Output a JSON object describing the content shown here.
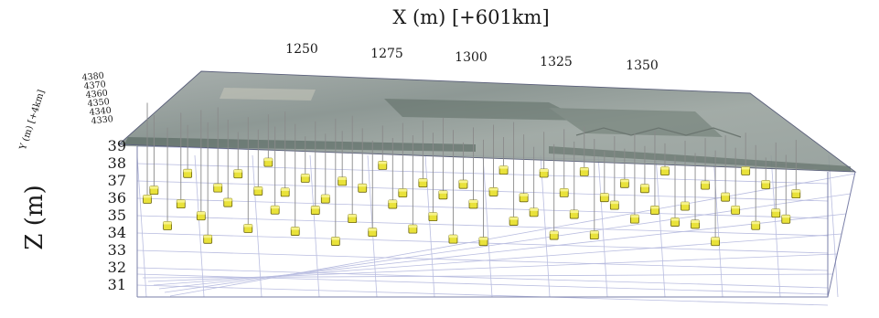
{
  "chart_data": {
    "type": "scatter",
    "title": "",
    "xlabel": "X (m) [+601km]",
    "ylabel": "Y (m) [+4km]",
    "zlabel": "Z (m)",
    "x_ticks": [
      "1250",
      "1275",
      "1300",
      "1325",
      "1350"
    ],
    "y_ticks": [
      "4380",
      "4370",
      "4360",
      "4350",
      "4340",
      "4330"
    ],
    "z_ticks": [
      "39",
      "38",
      "37",
      "36",
      "35",
      "34",
      "33",
      "32",
      "31"
    ],
    "zlim": [
      31,
      39
    ],
    "grid": true,
    "surface": "aerial photograph draped at ground level",
    "colors": {
      "marker": "#e9e23a",
      "marker_edge": "#6b6512",
      "grid": "#b9bde0"
    },
    "series": [
      {
        "points": [
          [
            1208,
            35.8
          ],
          [
            1210,
            37.0
          ],
          [
            1214,
            34.9
          ],
          [
            1218,
            36.1
          ],
          [
            1220,
            37.8
          ],
          [
            1224,
            35.3
          ],
          [
            1226,
            33.9
          ],
          [
            1229,
            36.8
          ],
          [
            1232,
            35.9
          ],
          [
            1235,
            37.5
          ],
          [
            1238,
            34.3
          ],
          [
            1241,
            36.4
          ],
          [
            1244,
            38.0
          ],
          [
            1246,
            35.2
          ],
          [
            1249,
            36.9
          ],
          [
            1252,
            34.6
          ],
          [
            1255,
            37.6
          ],
          [
            1258,
            35.7
          ],
          [
            1261,
            36.3
          ],
          [
            1264,
            33.8
          ],
          [
            1266,
            37.2
          ],
          [
            1269,
            35.0
          ],
          [
            1272,
            36.7
          ],
          [
            1275,
            34.1
          ],
          [
            1278,
            37.9
          ],
          [
            1281,
            35.6
          ],
          [
            1284,
            36.2
          ],
          [
            1287,
            34.8
          ],
          [
            1290,
            37.4
          ],
          [
            1293,
            35.4
          ],
          [
            1296,
            36.6
          ],
          [
            1299,
            34.0
          ],
          [
            1302,
            37.1
          ],
          [
            1305,
            35.9
          ],
          [
            1308,
            33.7
          ],
          [
            1311,
            36.5
          ],
          [
            1314,
            37.7
          ],
          [
            1317,
            34.7
          ],
          [
            1320,
            36.0
          ],
          [
            1323,
            35.1
          ],
          [
            1326,
            37.3
          ],
          [
            1329,
            34.4
          ],
          [
            1332,
            36.8
          ],
          [
            1335,
            35.5
          ],
          [
            1338,
            37.9
          ],
          [
            1341,
            34.2
          ],
          [
            1344,
            36.3
          ],
          [
            1347,
            35.8
          ],
          [
            1350,
            37.0
          ],
          [
            1353,
            34.9
          ],
          [
            1356,
            36.6
          ],
          [
            1359,
            35.3
          ],
          [
            1362,
            37.5
          ],
          [
            1365,
            34.5
          ],
          [
            1368,
            36.1
          ],
          [
            1371,
            35.0
          ],
          [
            1374,
            37.2
          ],
          [
            1377,
            33.9
          ],
          [
            1380,
            36.4
          ],
          [
            1383,
            35.6
          ],
          [
            1386,
            37.8
          ],
          [
            1389,
            34.6
          ],
          [
            1392,
            36.9
          ],
          [
            1395,
            35.2
          ],
          [
            1398,
            34.8
          ],
          [
            1401,
            36.2
          ]
        ]
      }
    ]
  }
}
